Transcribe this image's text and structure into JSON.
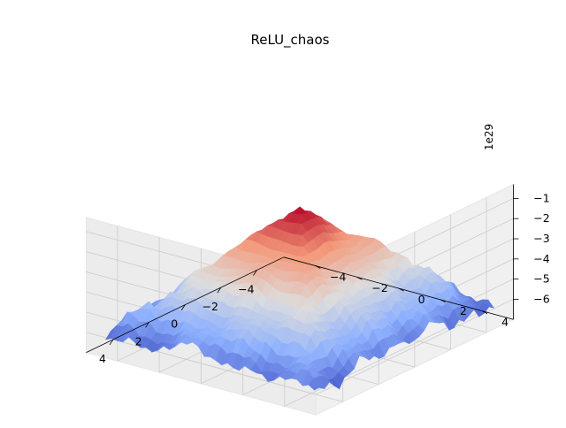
{
  "chart_data": {
    "type": "surface3d",
    "title": "ReLU_chaos",
    "xlabel": "",
    "ylabel": "",
    "zlabel": "",
    "x_ticks": [
      -4,
      -2,
      0,
      2,
      4
    ],
    "y_ticks": [
      -4,
      -2,
      0,
      2,
      4
    ],
    "z_ticks": [
      -1,
      -2,
      -3,
      -4,
      -5,
      -6
    ],
    "z_offset_label": "1e29",
    "xlim": [
      -5.5,
      5.5
    ],
    "ylim": [
      -5.5,
      5.5
    ],
    "zlim": [
      -7.0,
      -0.3
    ],
    "z_units_multiplier": 1e+29,
    "surface": {
      "shape": "pyramid",
      "peak": {
        "x": 0,
        "y": 0,
        "z": -0.6
      },
      "edge_z": -5.8,
      "corner_z": -6.6,
      "roughness": "high"
    },
    "colormap": "coolwarm",
    "grid": true
  },
  "ticks": {
    "x": [
      "−4",
      "−2",
      "0",
      "2",
      "4"
    ],
    "y": [
      "−4",
      "−2",
      "0",
      "2",
      "4"
    ],
    "z": [
      "−1",
      "−2",
      "−3",
      "−4",
      "−5",
      "−6"
    ]
  }
}
